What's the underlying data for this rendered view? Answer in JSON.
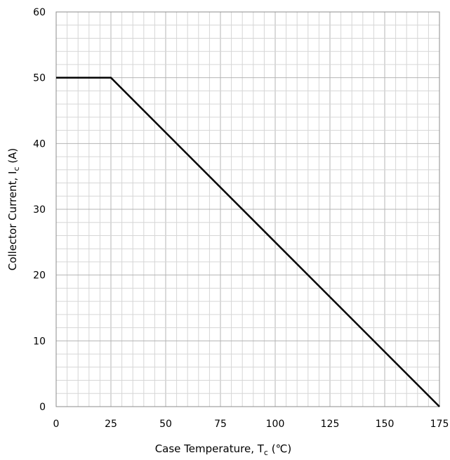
{
  "chart_data": {
    "type": "line",
    "title": "",
    "xlabel": {
      "main": "Case Temperature, T",
      "sub": "c",
      "unit": " (℃)"
    },
    "ylabel": {
      "main": "Collector Current, I",
      "sub": "c",
      "unit": " (A)"
    },
    "xlim": [
      0,
      175
    ],
    "ylim": [
      0,
      60
    ],
    "xticks": [
      0,
      25,
      50,
      75,
      100,
      125,
      150,
      175
    ],
    "yticks": [
      0,
      10,
      20,
      30,
      40,
      50,
      60
    ],
    "x_minor_step": 5,
    "y_minor_step": 2,
    "grid": true,
    "line_color": "#000000",
    "grid_major_color": "#b4b4b4",
    "grid_minor_color": "#d6d6d6",
    "series": [
      {
        "x": [
          0,
          25,
          175
        ],
        "y": [
          50,
          50,
          0
        ]
      }
    ]
  }
}
